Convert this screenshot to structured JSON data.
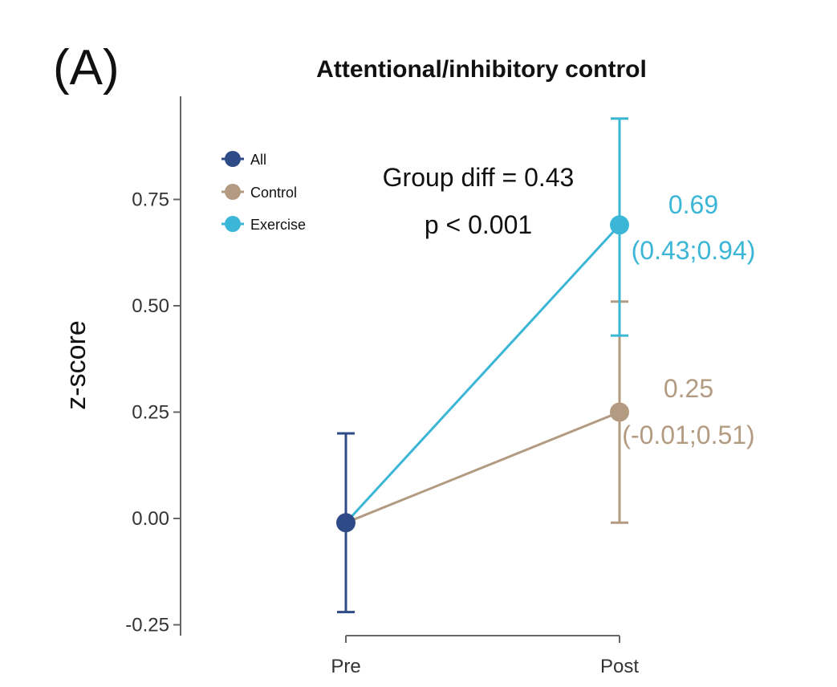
{
  "panel_label": "(A)",
  "chart_data": {
    "type": "line",
    "title": "Attentional/inhibitory control",
    "xlabel": "",
    "ylabel": "z-score",
    "categories": [
      "Pre",
      "Post"
    ],
    "ylim": [
      -0.25,
      0.94
    ],
    "yticks": [
      -0.25,
      0.0,
      0.25,
      0.5,
      0.75
    ],
    "ytick_labels": [
      "-0.25",
      "0.00",
      "0.25",
      "0.50",
      "0.75"
    ],
    "grid": false,
    "legend_position": "top-left",
    "legend": [
      {
        "name": "All",
        "color": "#2e4a87"
      },
      {
        "name": "Control",
        "color": "#b39b82"
      },
      {
        "name": "Exercise",
        "color": "#3bb6d6"
      }
    ],
    "series": [
      {
        "name": "All",
        "color": "#2e4a87",
        "points": [
          {
            "x": "Pre",
            "y": -0.01,
            "lo": -0.22,
            "hi": 0.2
          }
        ]
      },
      {
        "name": "Control",
        "color": "#b39b82",
        "points": [
          {
            "x": "Pre",
            "y": -0.01
          },
          {
            "x": "Post",
            "y": 0.25,
            "lo": -0.01,
            "hi": 0.51
          }
        ],
        "label_value": "0.25",
        "label_ci": "(-0.01;0.51)"
      },
      {
        "name": "Exercise",
        "color": "#3bb6d6",
        "points": [
          {
            "x": "Pre",
            "y": -0.01
          },
          {
            "x": "Post",
            "y": 0.69,
            "lo": 0.43,
            "hi": 0.94
          }
        ],
        "label_value": "0.69",
        "label_ci": "(0.43;0.94)"
      }
    ],
    "annotations": [
      "Group diff = 0.43",
      "p < 0.001"
    ]
  }
}
